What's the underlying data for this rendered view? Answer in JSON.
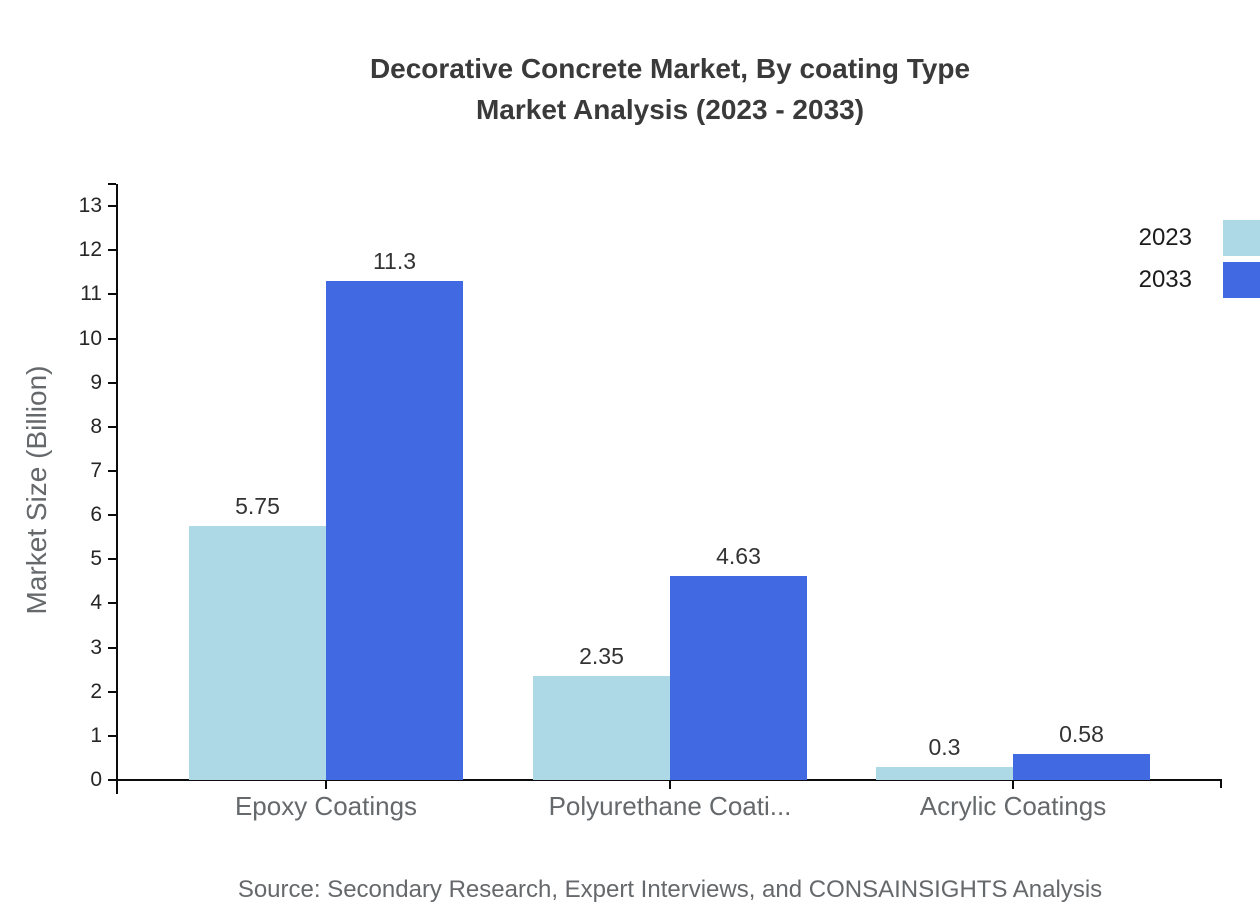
{
  "title": {
    "line1": "Decorative Concrete Market, By coating Type",
    "line2": "Market Analysis (2023 - 2033)"
  },
  "chart_data": {
    "type": "bar",
    "categories": [
      "Epoxy Coatings",
      "Polyurethane Coati...",
      "Acrylic Coatings"
    ],
    "series": [
      {
        "name": "2023",
        "color": "#ADD8E6",
        "values": [
          5.75,
          2.35,
          0.3
        ]
      },
      {
        "name": "2033",
        "color": "#4169E1",
        "values": [
          11.3,
          4.63,
          0.58
        ]
      }
    ],
    "title": "Decorative Concrete Market, By coating Type Market Analysis (2023 - 2033)",
    "xlabel": "",
    "ylabel": "Market Size (Billion)",
    "ylim": [
      0,
      13
    ],
    "ytick_step": 1,
    "grid": false,
    "legend_position": "top-right",
    "data_labels_shown": true
  },
  "source": "Source: Secondary Research, Expert Interviews, and CONSAINSIGHTS Analysis",
  "colors": {
    "axis": "#0c0c0c",
    "title_text": "#3a3a3a",
    "muted_text": "#66696b",
    "tick_text": "#262626",
    "value_text": "#333333",
    "series_2023": "#ADD8E6",
    "series_2033": "#4169E1"
  }
}
